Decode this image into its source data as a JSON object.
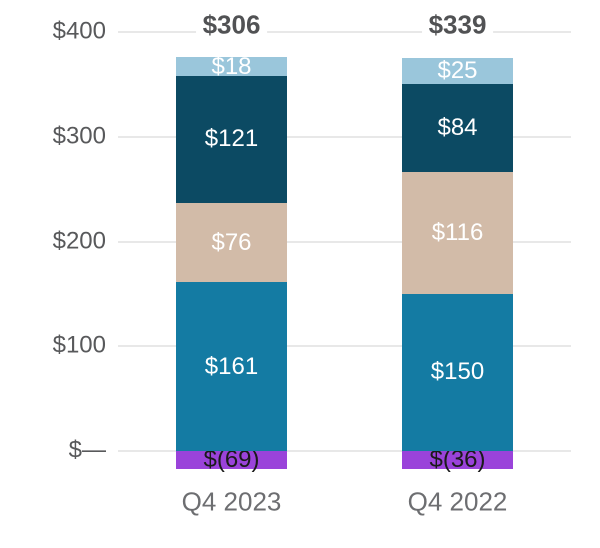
{
  "chart_data": {
    "type": "bar",
    "stacked": true,
    "title": "",
    "xlabel": "",
    "ylabel": "",
    "legend": false,
    "categories": [
      "Q4 2023",
      "Q4 2022"
    ],
    "total_labels": [
      "$306",
      "$339"
    ],
    "y_axis": {
      "range": [
        0,
        400
      ],
      "gridlines": true,
      "ticks": [
        {
          "value": 400,
          "label": "$400"
        },
        {
          "value": 300,
          "label": "$300"
        },
        {
          "value": 200,
          "label": "$200"
        },
        {
          "value": 100,
          "label": "$100"
        },
        {
          "value": 0,
          "label": "$—"
        }
      ]
    },
    "series": [
      {
        "name": "purple-segment",
        "color": "#9A43DA",
        "label_color": "#1A1A1A",
        "values": [
          -69,
          -36
        ],
        "labels": [
          "$(69)",
          "$(36)"
        ]
      },
      {
        "name": "teal-segment",
        "color": "#147BA3",
        "label_color": "#FFFFFF",
        "values": [
          161,
          150
        ],
        "labels": [
          "$161",
          "$150"
        ]
      },
      {
        "name": "tan-segment",
        "color": "#D2BBA8",
        "label_color": "#FFFFFF",
        "values": [
          76,
          116
        ],
        "labels": [
          "$76",
          "$116"
        ]
      },
      {
        "name": "dark-blue-segment",
        "color": "#0C4A63",
        "label_color": "#FFFFFF",
        "values": [
          121,
          84
        ],
        "labels": [
          "$121",
          "$84"
        ]
      },
      {
        "name": "light-blue-segment",
        "color": "#9AC6DB",
        "label_color": "#FFFFFF",
        "values": [
          18,
          25
        ],
        "labels": [
          "$18",
          "$25"
        ]
      }
    ]
  }
}
